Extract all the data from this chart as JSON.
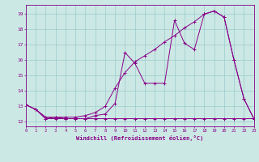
{
  "xlabel": "Windchill (Refroidissement éolien,°C)",
  "bg_color": "#cce8e4",
  "grid_color": "#99cccc",
  "line_color": "#880088",
  "x_ticks": [
    0,
    1,
    2,
    3,
    4,
    5,
    6,
    7,
    8,
    9,
    10,
    11,
    12,
    13,
    14,
    15,
    16,
    17,
    18,
    19,
    20,
    21,
    22,
    23
  ],
  "y_ticks": [
    12,
    13,
    14,
    15,
    16,
    17,
    18,
    19
  ],
  "xlim": [
    0,
    23
  ],
  "ylim": [
    11.7,
    19.6
  ],
  "series1_x": [
    0,
    1,
    2,
    3,
    4,
    5,
    6,
    7,
    8,
    9,
    10,
    11,
    12,
    13,
    14,
    15,
    16,
    17,
    18,
    19,
    20,
    21,
    22,
    23
  ],
  "series1_y": [
    13.1,
    12.8,
    12.2,
    12.3,
    12.2,
    12.2,
    12.2,
    12.4,
    12.5,
    13.2,
    16.5,
    15.8,
    14.5,
    14.5,
    14.5,
    18.6,
    17.1,
    16.7,
    19.0,
    19.2,
    18.8,
    16.0,
    13.5,
    12.2
  ],
  "series2_x": [
    0,
    1,
    2,
    3,
    4,
    5,
    6,
    7,
    8,
    9,
    10,
    11,
    12,
    13,
    14,
    15,
    16,
    17,
    18,
    19,
    20,
    21,
    22,
    23
  ],
  "series2_y": [
    13.1,
    12.8,
    12.3,
    12.3,
    12.3,
    12.3,
    12.4,
    12.6,
    13.0,
    14.2,
    15.2,
    15.9,
    16.3,
    16.7,
    17.2,
    17.6,
    18.1,
    18.5,
    19.0,
    19.2,
    18.8,
    16.0,
    13.5,
    12.2
  ],
  "series3_x": [
    0,
    1,
    2,
    3,
    4,
    5,
    6,
    7,
    8,
    9,
    10,
    11,
    12,
    13,
    14,
    15,
    16,
    17,
    18,
    19,
    20,
    21,
    22,
    23
  ],
  "series3_y": [
    13.1,
    12.8,
    12.2,
    12.2,
    12.2,
    12.2,
    12.2,
    12.2,
    12.2,
    12.2,
    12.2,
    12.2,
    12.2,
    12.2,
    12.2,
    12.2,
    12.2,
    12.2,
    12.2,
    12.2,
    12.2,
    12.2,
    12.2,
    12.2
  ]
}
